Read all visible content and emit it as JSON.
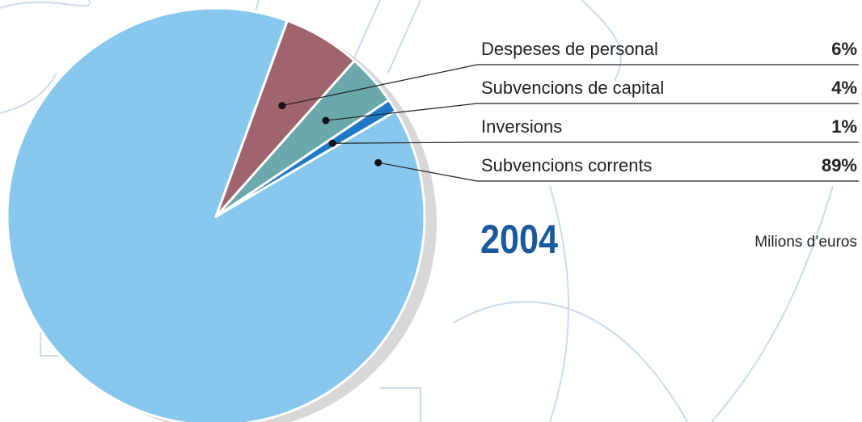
{
  "chart_data": {
    "type": "pie",
    "title": "2004",
    "subtitle": "Milions d’euros",
    "categories": [
      "Despeses de personal",
      "Subvencions de capital",
      "Inversions",
      "Subvencions corrents"
    ],
    "values": [
      6,
      4,
      1,
      89
    ],
    "value_labels": [
      "6%",
      "4%",
      "1%",
      "89%"
    ],
    "colors": [
      "#a0646e",
      "#6aa8ac",
      "#1f78c8",
      "#88c8ee"
    ]
  }
}
